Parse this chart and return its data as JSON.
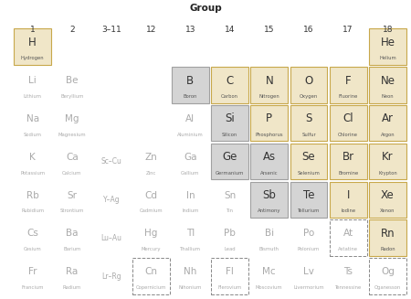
{
  "title": "Group",
  "col_labels": [
    "1",
    "2",
    "3–11",
    "12",
    "13",
    "14",
    "15",
    "16",
    "17",
    "18"
  ],
  "background": "#ffffff",
  "tan_color": "#f0e6c8",
  "gray_color": "#d4d4d4",
  "white_color": "#ffffff",
  "tan_border": "#c8a84b",
  "gray_border": "#a0a0a0",
  "dashed_border": "#888888",
  "symbol_color_dark": "#333333",
  "symbol_color_light": "#aaaaaa",
  "name_color_dark": "#555555",
  "name_color_light": "#aaaaaa",
  "cells": [
    {
      "row": 0,
      "col": 0,
      "symbol": "H",
      "name": "Hydrogen",
      "type": "tan",
      "border": "solid"
    },
    {
      "row": 0,
      "col": 9,
      "symbol": "He",
      "name": "Helium",
      "type": "tan",
      "border": "solid"
    },
    {
      "row": 1,
      "col": 0,
      "symbol": "Li",
      "name": "Lithium",
      "type": "white",
      "border": "none"
    },
    {
      "row": 1,
      "col": 1,
      "symbol": "Be",
      "name": "Beryllium",
      "type": "white",
      "border": "none"
    },
    {
      "row": 1,
      "col": 4,
      "symbol": "B",
      "name": "Boron",
      "type": "gray",
      "border": "solid"
    },
    {
      "row": 1,
      "col": 5,
      "symbol": "C",
      "name": "Carbon",
      "type": "tan",
      "border": "solid"
    },
    {
      "row": 1,
      "col": 6,
      "symbol": "N",
      "name": "Nitrogen",
      "type": "tan",
      "border": "solid"
    },
    {
      "row": 1,
      "col": 7,
      "symbol": "O",
      "name": "Oxygen",
      "type": "tan",
      "border": "solid"
    },
    {
      "row": 1,
      "col": 8,
      "symbol": "F",
      "name": "Fluorine",
      "type": "tan",
      "border": "solid"
    },
    {
      "row": 1,
      "col": 9,
      "symbol": "Ne",
      "name": "Neon",
      "type": "tan",
      "border": "solid"
    },
    {
      "row": 2,
      "col": 0,
      "symbol": "Na",
      "name": "Sodium",
      "type": "white",
      "border": "none"
    },
    {
      "row": 2,
      "col": 1,
      "symbol": "Mg",
      "name": "Magnesium",
      "type": "white",
      "border": "none"
    },
    {
      "row": 2,
      "col": 4,
      "symbol": "Al",
      "name": "Aluminium",
      "type": "white",
      "border": "none"
    },
    {
      "row": 2,
      "col": 5,
      "symbol": "Si",
      "name": "Silicon",
      "type": "gray",
      "border": "solid"
    },
    {
      "row": 2,
      "col": 6,
      "symbol": "P",
      "name": "Phosphorus",
      "type": "tan",
      "border": "solid"
    },
    {
      "row": 2,
      "col": 7,
      "symbol": "S",
      "name": "Sulfur",
      "type": "tan",
      "border": "solid"
    },
    {
      "row": 2,
      "col": 8,
      "symbol": "Cl",
      "name": "Chlorine",
      "type": "tan",
      "border": "solid"
    },
    {
      "row": 2,
      "col": 9,
      "symbol": "Ar",
      "name": "Argon",
      "type": "tan",
      "border": "solid"
    },
    {
      "row": 3,
      "col": 0,
      "symbol": "K",
      "name": "Potassium",
      "type": "white",
      "border": "none"
    },
    {
      "row": 3,
      "col": 1,
      "symbol": "Ca",
      "name": "Calcium",
      "type": "white",
      "border": "none"
    },
    {
      "row": 3,
      "col": 2,
      "symbol": "Sc–Cu",
      "name": "",
      "type": "white",
      "border": "none"
    },
    {
      "row": 3,
      "col": 3,
      "symbol": "Zn",
      "name": "Zinc",
      "type": "white",
      "border": "none"
    },
    {
      "row": 3,
      "col": 4,
      "symbol": "Ga",
      "name": "Gallium",
      "type": "white",
      "border": "none"
    },
    {
      "row": 3,
      "col": 5,
      "symbol": "Ge",
      "name": "Germanium",
      "type": "gray",
      "border": "solid"
    },
    {
      "row": 3,
      "col": 6,
      "symbol": "As",
      "name": "Arsenic",
      "type": "gray",
      "border": "solid"
    },
    {
      "row": 3,
      "col": 7,
      "symbol": "Se",
      "name": "Selenium",
      "type": "tan",
      "border": "solid"
    },
    {
      "row": 3,
      "col": 8,
      "symbol": "Br",
      "name": "Bromine",
      "type": "tan",
      "border": "solid"
    },
    {
      "row": 3,
      "col": 9,
      "symbol": "Kr",
      "name": "Krypton",
      "type": "tan",
      "border": "solid"
    },
    {
      "row": 4,
      "col": 0,
      "symbol": "Rb",
      "name": "Rubidium",
      "type": "white",
      "border": "none"
    },
    {
      "row": 4,
      "col": 1,
      "symbol": "Sr",
      "name": "Strontium",
      "type": "white",
      "border": "none"
    },
    {
      "row": 4,
      "col": 2,
      "symbol": "Y–Ag",
      "name": "",
      "type": "white",
      "border": "none"
    },
    {
      "row": 4,
      "col": 3,
      "symbol": "Cd",
      "name": "Cadmium",
      "type": "white",
      "border": "none"
    },
    {
      "row": 4,
      "col": 4,
      "symbol": "In",
      "name": "Indium",
      "type": "white",
      "border": "none"
    },
    {
      "row": 4,
      "col": 5,
      "symbol": "Sn",
      "name": "Tin",
      "type": "white",
      "border": "none"
    },
    {
      "row": 4,
      "col": 6,
      "symbol": "Sb",
      "name": "Antimony",
      "type": "gray",
      "border": "solid"
    },
    {
      "row": 4,
      "col": 7,
      "symbol": "Te",
      "name": "Tellurium",
      "type": "gray",
      "border": "solid"
    },
    {
      "row": 4,
      "col": 8,
      "symbol": "I",
      "name": "Iodine",
      "type": "tan",
      "border": "solid"
    },
    {
      "row": 4,
      "col": 9,
      "symbol": "Xe",
      "name": "Xenon",
      "type": "tan",
      "border": "solid"
    },
    {
      "row": 5,
      "col": 0,
      "symbol": "Cs",
      "name": "Cesium",
      "type": "white",
      "border": "none"
    },
    {
      "row": 5,
      "col": 1,
      "symbol": "Ba",
      "name": "Barium",
      "type": "white",
      "border": "none"
    },
    {
      "row": 5,
      "col": 2,
      "symbol": "Lu–Au",
      "name": "",
      "type": "white",
      "border": "none"
    },
    {
      "row": 5,
      "col": 3,
      "symbol": "Hg",
      "name": "Mercury",
      "type": "white",
      "border": "none"
    },
    {
      "row": 5,
      "col": 4,
      "symbol": "Tl",
      "name": "Thallium",
      "type": "white",
      "border": "none"
    },
    {
      "row": 5,
      "col": 5,
      "symbol": "Pb",
      "name": "Lead",
      "type": "white",
      "border": "none"
    },
    {
      "row": 5,
      "col": 6,
      "symbol": "Bi",
      "name": "Bismuth",
      "type": "white",
      "border": "none"
    },
    {
      "row": 5,
      "col": 7,
      "symbol": "Po",
      "name": "Polonium",
      "type": "white",
      "border": "none"
    },
    {
      "row": 5,
      "col": 8,
      "symbol": "At",
      "name": "Astatine",
      "type": "white",
      "border": "dashed"
    },
    {
      "row": 5,
      "col": 9,
      "symbol": "Rn",
      "name": "Radon",
      "type": "tan",
      "border": "solid"
    },
    {
      "row": 6,
      "col": 0,
      "symbol": "Fr",
      "name": "Francium",
      "type": "white",
      "border": "none"
    },
    {
      "row": 6,
      "col": 1,
      "symbol": "Ra",
      "name": "Radium",
      "type": "white",
      "border": "none"
    },
    {
      "row": 6,
      "col": 2,
      "symbol": "Lr–Rg",
      "name": "",
      "type": "white",
      "border": "none"
    },
    {
      "row": 6,
      "col": 3,
      "symbol": "Cn",
      "name": "Copernicium",
      "type": "white",
      "border": "dashed"
    },
    {
      "row": 6,
      "col": 4,
      "symbol": "Nh",
      "name": "Nihonium",
      "type": "white",
      "border": "none"
    },
    {
      "row": 6,
      "col": 5,
      "symbol": "Fl",
      "name": "Flerovium",
      "type": "white",
      "border": "dashed"
    },
    {
      "row": 6,
      "col": 6,
      "symbol": "Mc",
      "name": "Moscovium",
      "type": "white",
      "border": "none"
    },
    {
      "row": 6,
      "col": 7,
      "symbol": "Lv",
      "name": "Livermorium",
      "type": "white",
      "border": "none"
    },
    {
      "row": 6,
      "col": 8,
      "symbol": "Ts",
      "name": "Tennessine",
      "type": "white",
      "border": "none"
    },
    {
      "row": 6,
      "col": 9,
      "symbol": "Og",
      "name": "Oganesson",
      "type": "white",
      "border": "dashed"
    }
  ]
}
